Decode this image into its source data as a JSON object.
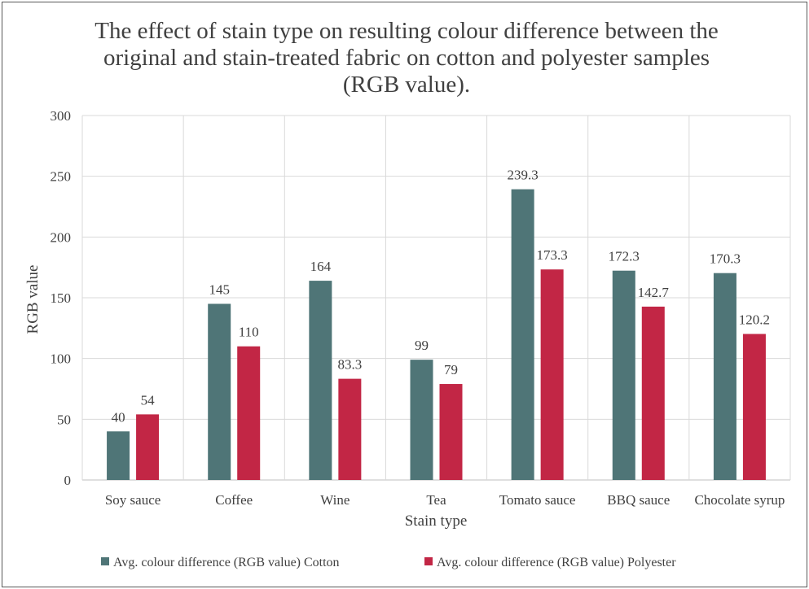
{
  "colors": {
    "cotton": "#4f7577",
    "polyester": "#c22645",
    "grid": "#d9d9d9",
    "text": "#404040"
  },
  "chart_data": {
    "type": "bar",
    "title": [
      "The effect of stain type on resulting colour difference between the",
      "original and stain-treated fabric on cotton and polyester samples",
      "(RGB value)."
    ],
    "xlabel": "Stain type",
    "ylabel": "RGB value",
    "ylim": [
      0,
      300
    ],
    "yticks": [
      0,
      50,
      100,
      150,
      200,
      250,
      300
    ],
    "grid": true,
    "legend_position": "bottom",
    "categories": [
      "Soy sauce",
      "Coffee",
      "Wine",
      "Tea",
      "Tomato sauce",
      "BBQ sauce",
      "Chocolate syrup"
    ],
    "series": [
      {
        "name": "Avg. colour difference  (RGB value) Cotton",
        "values": [
          40,
          145,
          164,
          99,
          239.3,
          172.3,
          170.3
        ],
        "labels": [
          "40",
          "145",
          "164",
          "99",
          "239.3",
          "172.3",
          "170.3"
        ]
      },
      {
        "name": "Avg. colour difference  (RGB value) Polyester",
        "values": [
          54,
          110,
          83.3,
          79,
          173.3,
          142.7,
          120.2
        ],
        "labels": [
          "54",
          "110",
          "83.3",
          "79",
          "173.3",
          "142.7",
          "120.2"
        ]
      }
    ]
  }
}
